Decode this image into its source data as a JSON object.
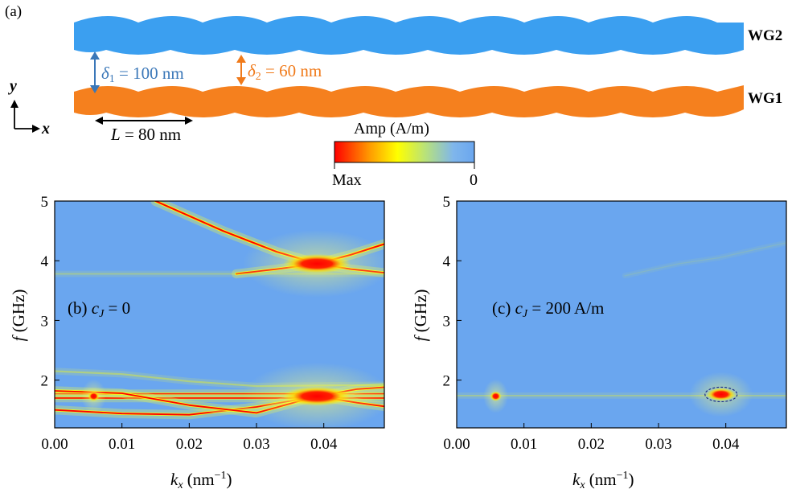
{
  "panel_a": {
    "label": "(a)",
    "wg_top_label": "WG2",
    "wg_bottom_label": "WG1",
    "delta1": {
      "symbol": "δ",
      "sub": "1",
      "text": " = 100 nm"
    },
    "delta2": {
      "symbol": "δ",
      "sub": "2",
      "text": " = 60 nm"
    },
    "period": {
      "symbol": "L",
      "text": " = 80 nm"
    },
    "axis_y": "y",
    "axis_x": "x",
    "colorbar": {
      "title": "Amp (A/m)",
      "min_label": "Max",
      "max_label": "0"
    },
    "colors": {
      "wg2": "#3b9ff0",
      "wg1": "#f5801e",
      "delta1_arrow": "#3a77b8",
      "delta2_arrow": "#f07a1a"
    }
  },
  "chart_data": [
    {
      "type": "heatmap",
      "panel_label": "(b) ",
      "annotation_var": "c",
      "annotation_sub": "J",
      "annotation_value": " = 0",
      "xlabel_var": "k",
      "xlabel_sub": "x",
      "xlabel_unit": " (nm",
      "xlabel_exp": "−1",
      "xlabel_close": ")",
      "ylabel_var": "f",
      "ylabel_unit": " (GHz)",
      "xlim": [
        0,
        0.049
      ],
      "ylim": [
        1.2,
        5.0
      ],
      "xticks": [
        "0.00",
        "0.01",
        "0.02",
        "0.03",
        "0.04"
      ],
      "xtick_values": [
        0,
        0.01,
        0.02,
        0.03,
        0.04
      ],
      "yticks": [
        "2",
        "3",
        "4",
        "5"
      ],
      "ytick_values": [
        2,
        3,
        4,
        5
      ],
      "hot_spots": [
        {
          "kx": 0.0058,
          "f": 1.73
        },
        {
          "kx": 0.039,
          "f": 1.73
        },
        {
          "kx": 0.039,
          "f": 3.95
        }
      ],
      "bands": [
        {
          "name": "",
          "strength": 1.0,
          "points": [
            [
              0.015,
              5.0
            ],
            [
              0.025,
              4.5
            ],
            [
              0.033,
              4.15
            ],
            [
              0.039,
              3.95
            ],
            [
              0.044,
              4.1
            ],
            [
              0.049,
              4.28
            ]
          ]
        },
        {
          "name": "",
          "strength": 0.9,
          "points": [
            [
              0.027,
              3.78
            ],
            [
              0.033,
              3.86
            ],
            [
              0.039,
              3.95
            ],
            [
              0.044,
              3.86
            ],
            [
              0.049,
              3.8
            ]
          ]
        },
        {
          "name": "",
          "strength": 0.3,
          "points": [
            [
              0.0,
              3.78
            ],
            [
              0.049,
              3.78
            ]
          ]
        },
        {
          "name": "",
          "strength": 0.8,
          "points": [
            [
              0.0,
              1.77
            ],
            [
              0.049,
              1.77
            ]
          ]
        },
        {
          "name": "",
          "strength": 0.8,
          "points": [
            [
              0.0,
              1.7
            ],
            [
              0.049,
              1.7
            ]
          ]
        },
        {
          "name": "",
          "strength": 0.9,
          "points": [
            [
              0.0,
              1.5
            ],
            [
              0.01,
              1.44
            ],
            [
              0.02,
              1.42
            ],
            [
              0.03,
              1.55
            ],
            [
              0.039,
              1.73
            ],
            [
              0.045,
              1.85
            ],
            [
              0.049,
              1.88
            ]
          ]
        },
        {
          "name": "",
          "strength": 0.9,
          "points": [
            [
              0.0,
              1.82
            ],
            [
              0.01,
              1.78
            ],
            [
              0.02,
              1.58
            ],
            [
              0.03,
              1.45
            ],
            [
              0.039,
              1.73
            ],
            [
              0.045,
              1.62
            ],
            [
              0.049,
              1.56
            ]
          ]
        },
        {
          "name": "",
          "strength": 0.4,
          "points": [
            [
              0.0,
              2.15
            ],
            [
              0.01,
              2.1
            ],
            [
              0.02,
              1.98
            ],
            [
              0.03,
              1.9
            ],
            [
              0.049,
              1.92
            ]
          ]
        }
      ]
    },
    {
      "type": "heatmap",
      "panel_label": "(c) ",
      "annotation_var": "c",
      "annotation_sub": "J",
      "annotation_value": " = 200 A/m",
      "xlabel_var": "k",
      "xlabel_sub": "x",
      "xlabel_unit": " (nm",
      "xlabel_exp": "−1",
      "xlabel_close": ")",
      "ylabel_var": "f",
      "ylabel_unit": " (GHz)",
      "xlim": [
        0,
        0.049
      ],
      "ylim": [
        1.2,
        5.0
      ],
      "xticks": [
        "0.00",
        "0.01",
        "0.02",
        "0.03",
        "0.04"
      ],
      "xtick_values": [
        0,
        0.01,
        0.02,
        0.03,
        0.04
      ],
      "yticks": [
        "2",
        "3",
        "4",
        "5"
      ],
      "ytick_values": [
        2,
        3,
        4,
        5
      ],
      "hot_spots": [
        {
          "kx": 0.0058,
          "f": 1.73
        },
        {
          "kx": 0.0393,
          "f": 1.76
        }
      ],
      "bands": [
        {
          "name": "",
          "strength": 0.3,
          "points": [
            [
              0.0,
              1.74
            ],
            [
              0.049,
              1.74
            ]
          ]
        },
        {
          "name": "",
          "strength": 0.12,
          "points": [
            [
              0.025,
              3.75
            ],
            [
              0.033,
              3.95
            ],
            [
              0.039,
              4.05
            ],
            [
              0.044,
              4.18
            ],
            [
              0.049,
              4.3
            ]
          ]
        }
      ]
    }
  ]
}
